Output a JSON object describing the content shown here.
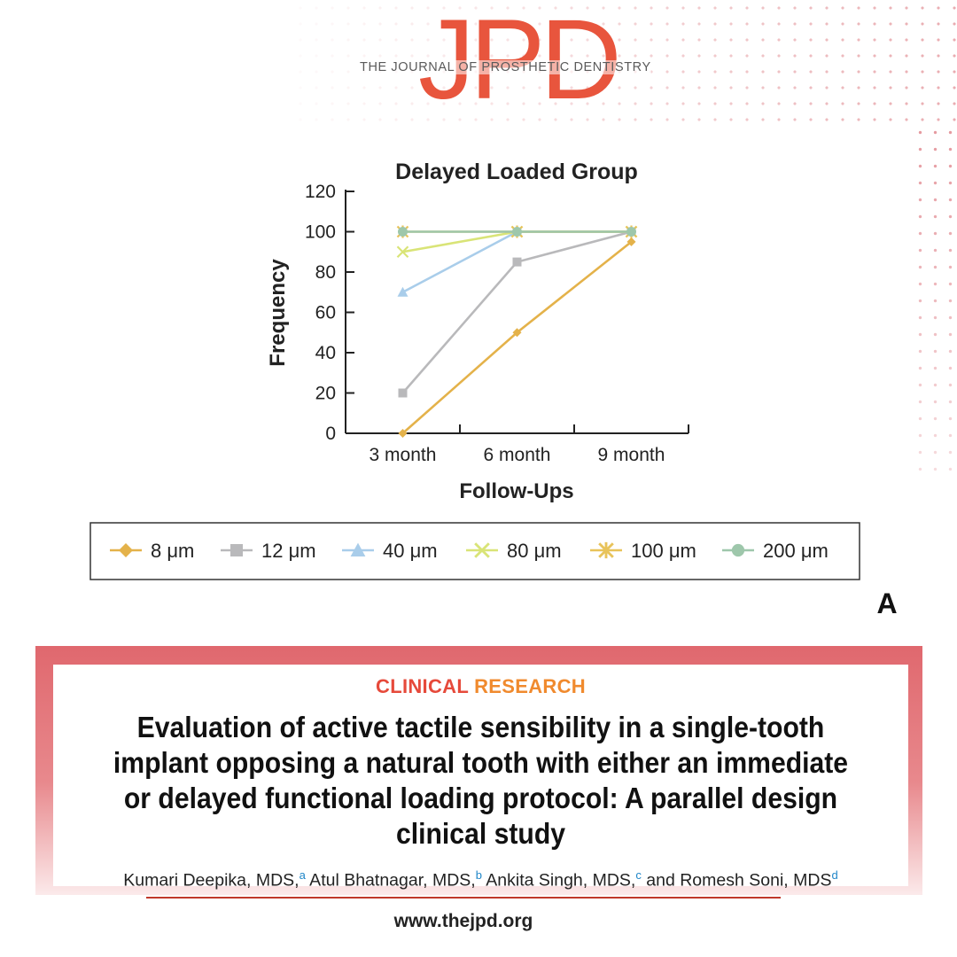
{
  "logo": {
    "mark": "JPD",
    "subtitle": "THE JOURNAL OF PROSTHETIC DENTISTRY"
  },
  "chart_data": {
    "type": "line",
    "title": "Delayed Loaded Group",
    "xlabel": "Follow-Ups",
    "ylabel": "Frequency",
    "categories": [
      "3 month",
      "6 month",
      "9 month"
    ],
    "ylim": [
      0,
      120
    ],
    "yticks": [
      0,
      20,
      40,
      60,
      80,
      100,
      120
    ],
    "grid": false,
    "legend_position": "bottom",
    "series": [
      {
        "name": "8 μm",
        "values": [
          0,
          50,
          95
        ],
        "color": "#e4b24a",
        "marker": "diamond"
      },
      {
        "name": "12 μm",
        "values": [
          20,
          85,
          100
        ],
        "color": "#b9b9bb",
        "marker": "square"
      },
      {
        "name": "40 μm",
        "values": [
          70,
          100,
          100
        ],
        "color": "#a9cdea",
        "marker": "triangle"
      },
      {
        "name": "80 μm",
        "values": [
          90,
          100,
          100
        ],
        "color": "#d9e477",
        "marker": "x"
      },
      {
        "name": "100 μm",
        "values": [
          100,
          100,
          100
        ],
        "color": "#e8c35a",
        "marker": "asterisk"
      },
      {
        "name": "200 μm",
        "values": [
          100,
          100,
          100
        ],
        "color": "#9ec7ab",
        "marker": "circle"
      }
    ],
    "panel_label": "A"
  },
  "article": {
    "category_part1": "CLINICAL",
    "category_part2": "RESEARCH",
    "title": "Evaluation of active tactile sensibility in a single-tooth implant opposing a natural tooth with either an immediate or delayed functional loading protocol: A parallel design clinical study",
    "authors": [
      {
        "name": "Kumari Deepika, MDS,",
        "sup": "a"
      },
      {
        "name": " Atul Bhatnagar, MDS,",
        "sup": "b"
      },
      {
        "name": " Ankita Singh, MDS,",
        "sup": "c"
      },
      {
        "name": " and Romesh Soni, MDS",
        "sup": "d"
      }
    ]
  },
  "footer": {
    "website": "www.thejpd.org"
  }
}
